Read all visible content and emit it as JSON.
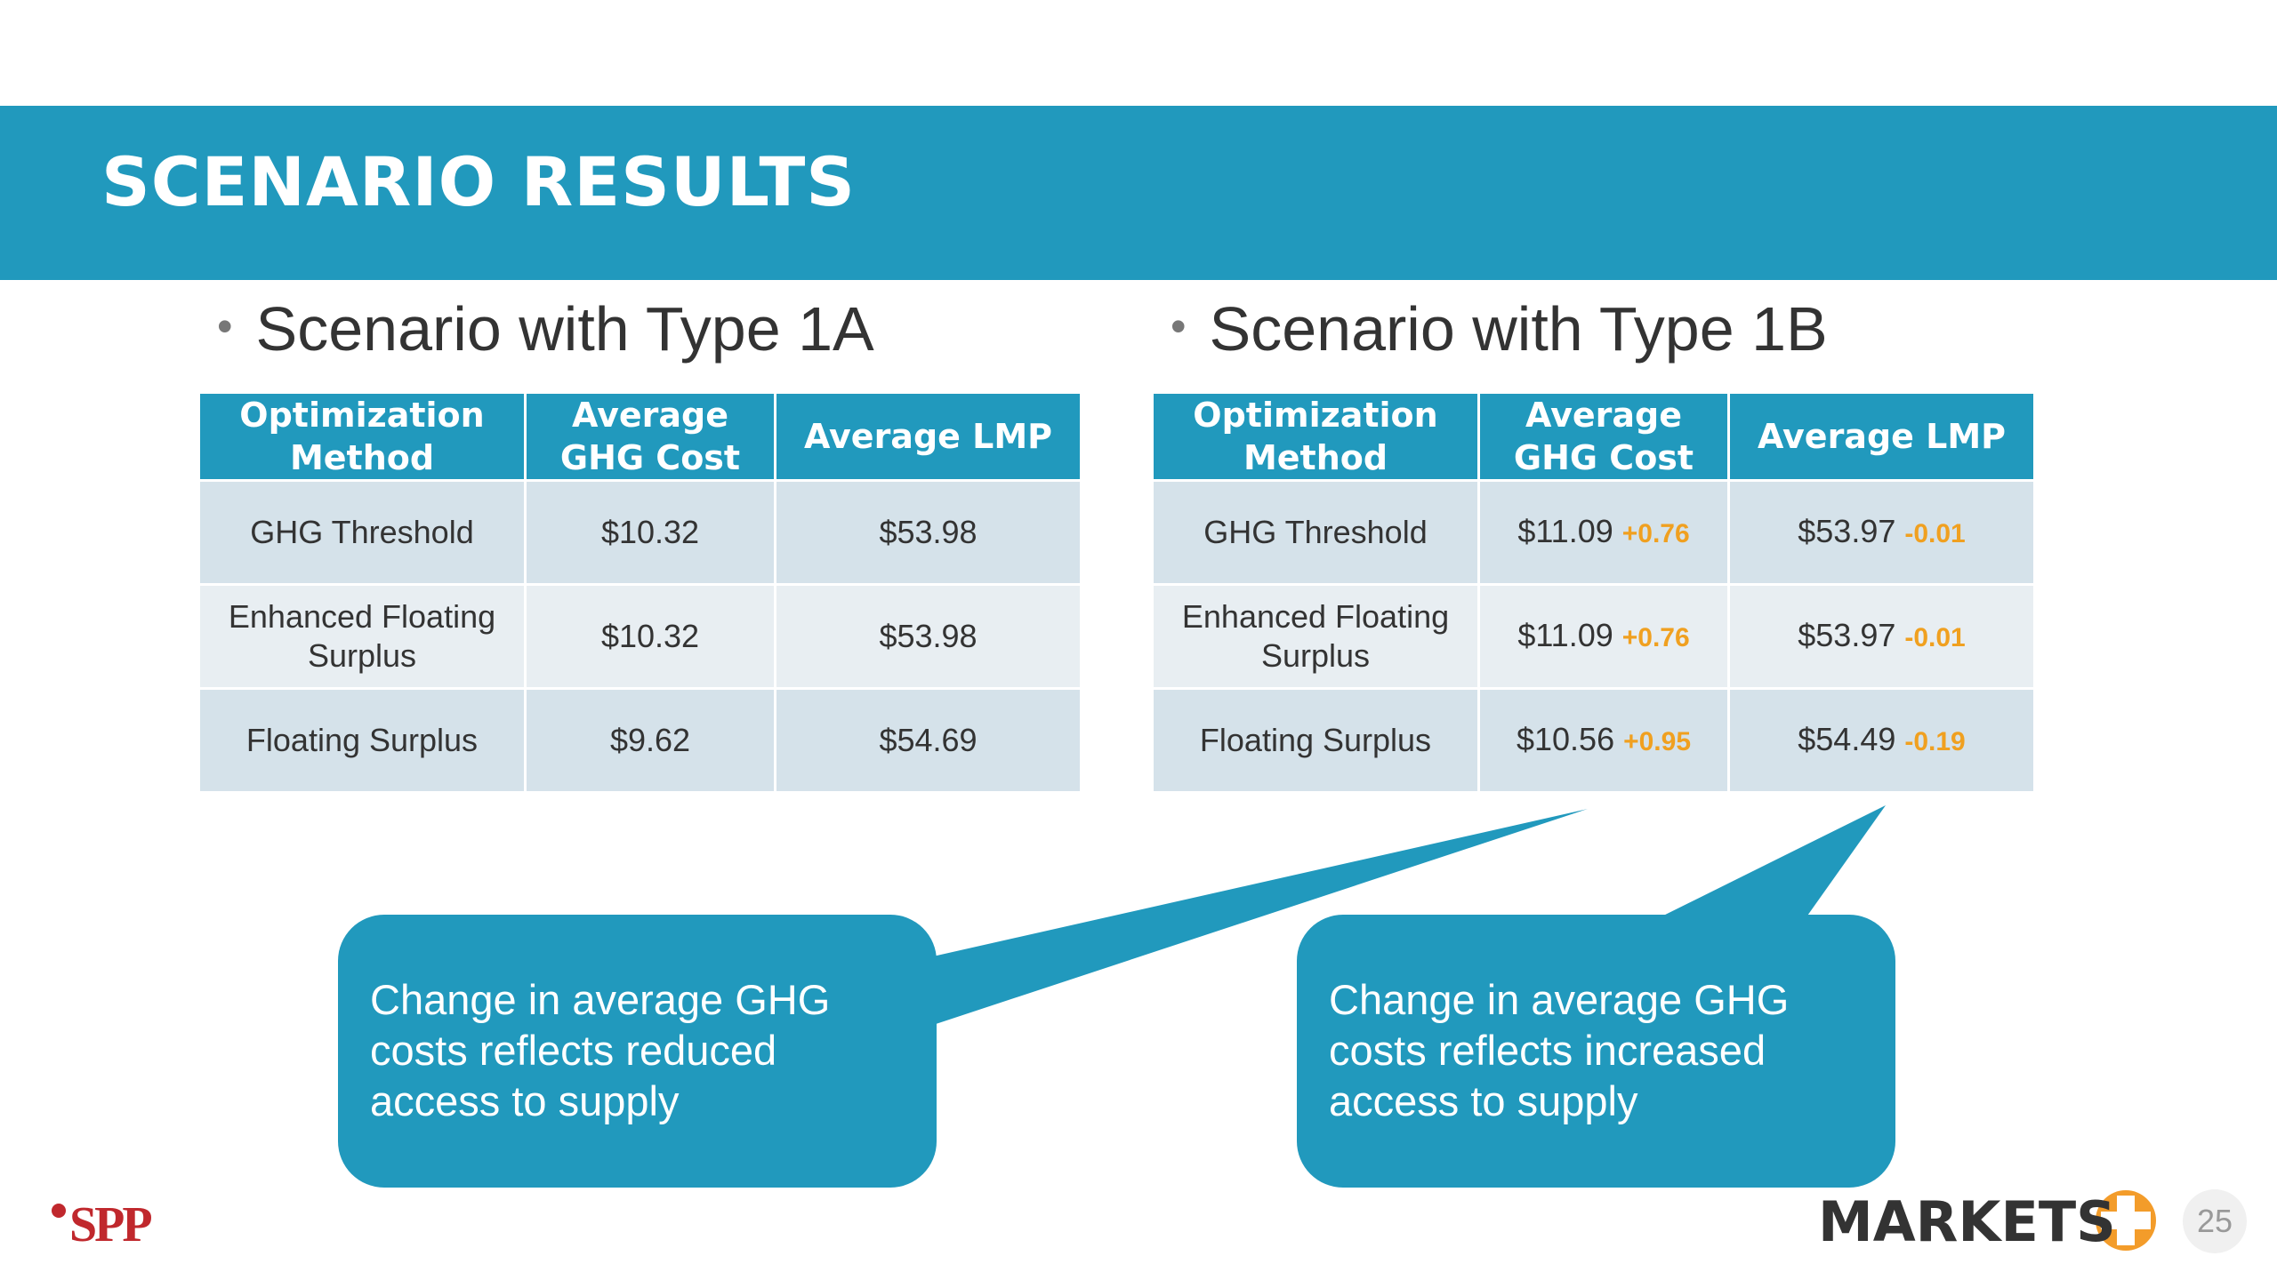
{
  "header": {
    "title": "SCENARIO RESULTS"
  },
  "sections": [
    {
      "heading": "Scenario with Type 1A",
      "table": {
        "columns": [
          "Optimization Method",
          "Average GHG Cost",
          "Average LMP"
        ],
        "rows": [
          [
            {
              "text": "GHG Threshold"
            },
            {
              "text": "$10.32"
            },
            {
              "text": "$53.98"
            }
          ],
          [
            {
              "text": "Enhanced Floating Surplus"
            },
            {
              "text": "$10.32"
            },
            {
              "text": "$53.98"
            }
          ],
          [
            {
              "text": "Floating Surplus"
            },
            {
              "text": "$9.62"
            },
            {
              "text": "$54.69"
            }
          ]
        ]
      }
    },
    {
      "heading": "Scenario with Type 1B",
      "table": {
        "columns": [
          "Optimization Method",
          "Average GHG Cost",
          "Average LMP"
        ],
        "rows": [
          [
            {
              "text": "GHG Threshold"
            },
            {
              "text": "$11.09",
              "change": "+0.76"
            },
            {
              "text": "$53.97",
              "change": "-0.01"
            }
          ],
          [
            {
              "text": "Enhanced Floating Surplus"
            },
            {
              "text": "$11.09",
              "change": "+0.76"
            },
            {
              "text": "$53.97",
              "change": "-0.01"
            }
          ],
          [
            {
              "text": "Floating Surplus"
            },
            {
              "text": "$10.56",
              "change": "+0.95"
            },
            {
              "text": "$54.49",
              "change": "-0.19"
            }
          ]
        ]
      }
    }
  ],
  "callouts": [
    "Change in average GHG costs reflects reduced access to supply",
    "Change in average GHG costs reflects increased access to supply"
  ],
  "footer": {
    "logo_left": "SPP",
    "logo_right": "MARKETS",
    "page": "25"
  }
}
